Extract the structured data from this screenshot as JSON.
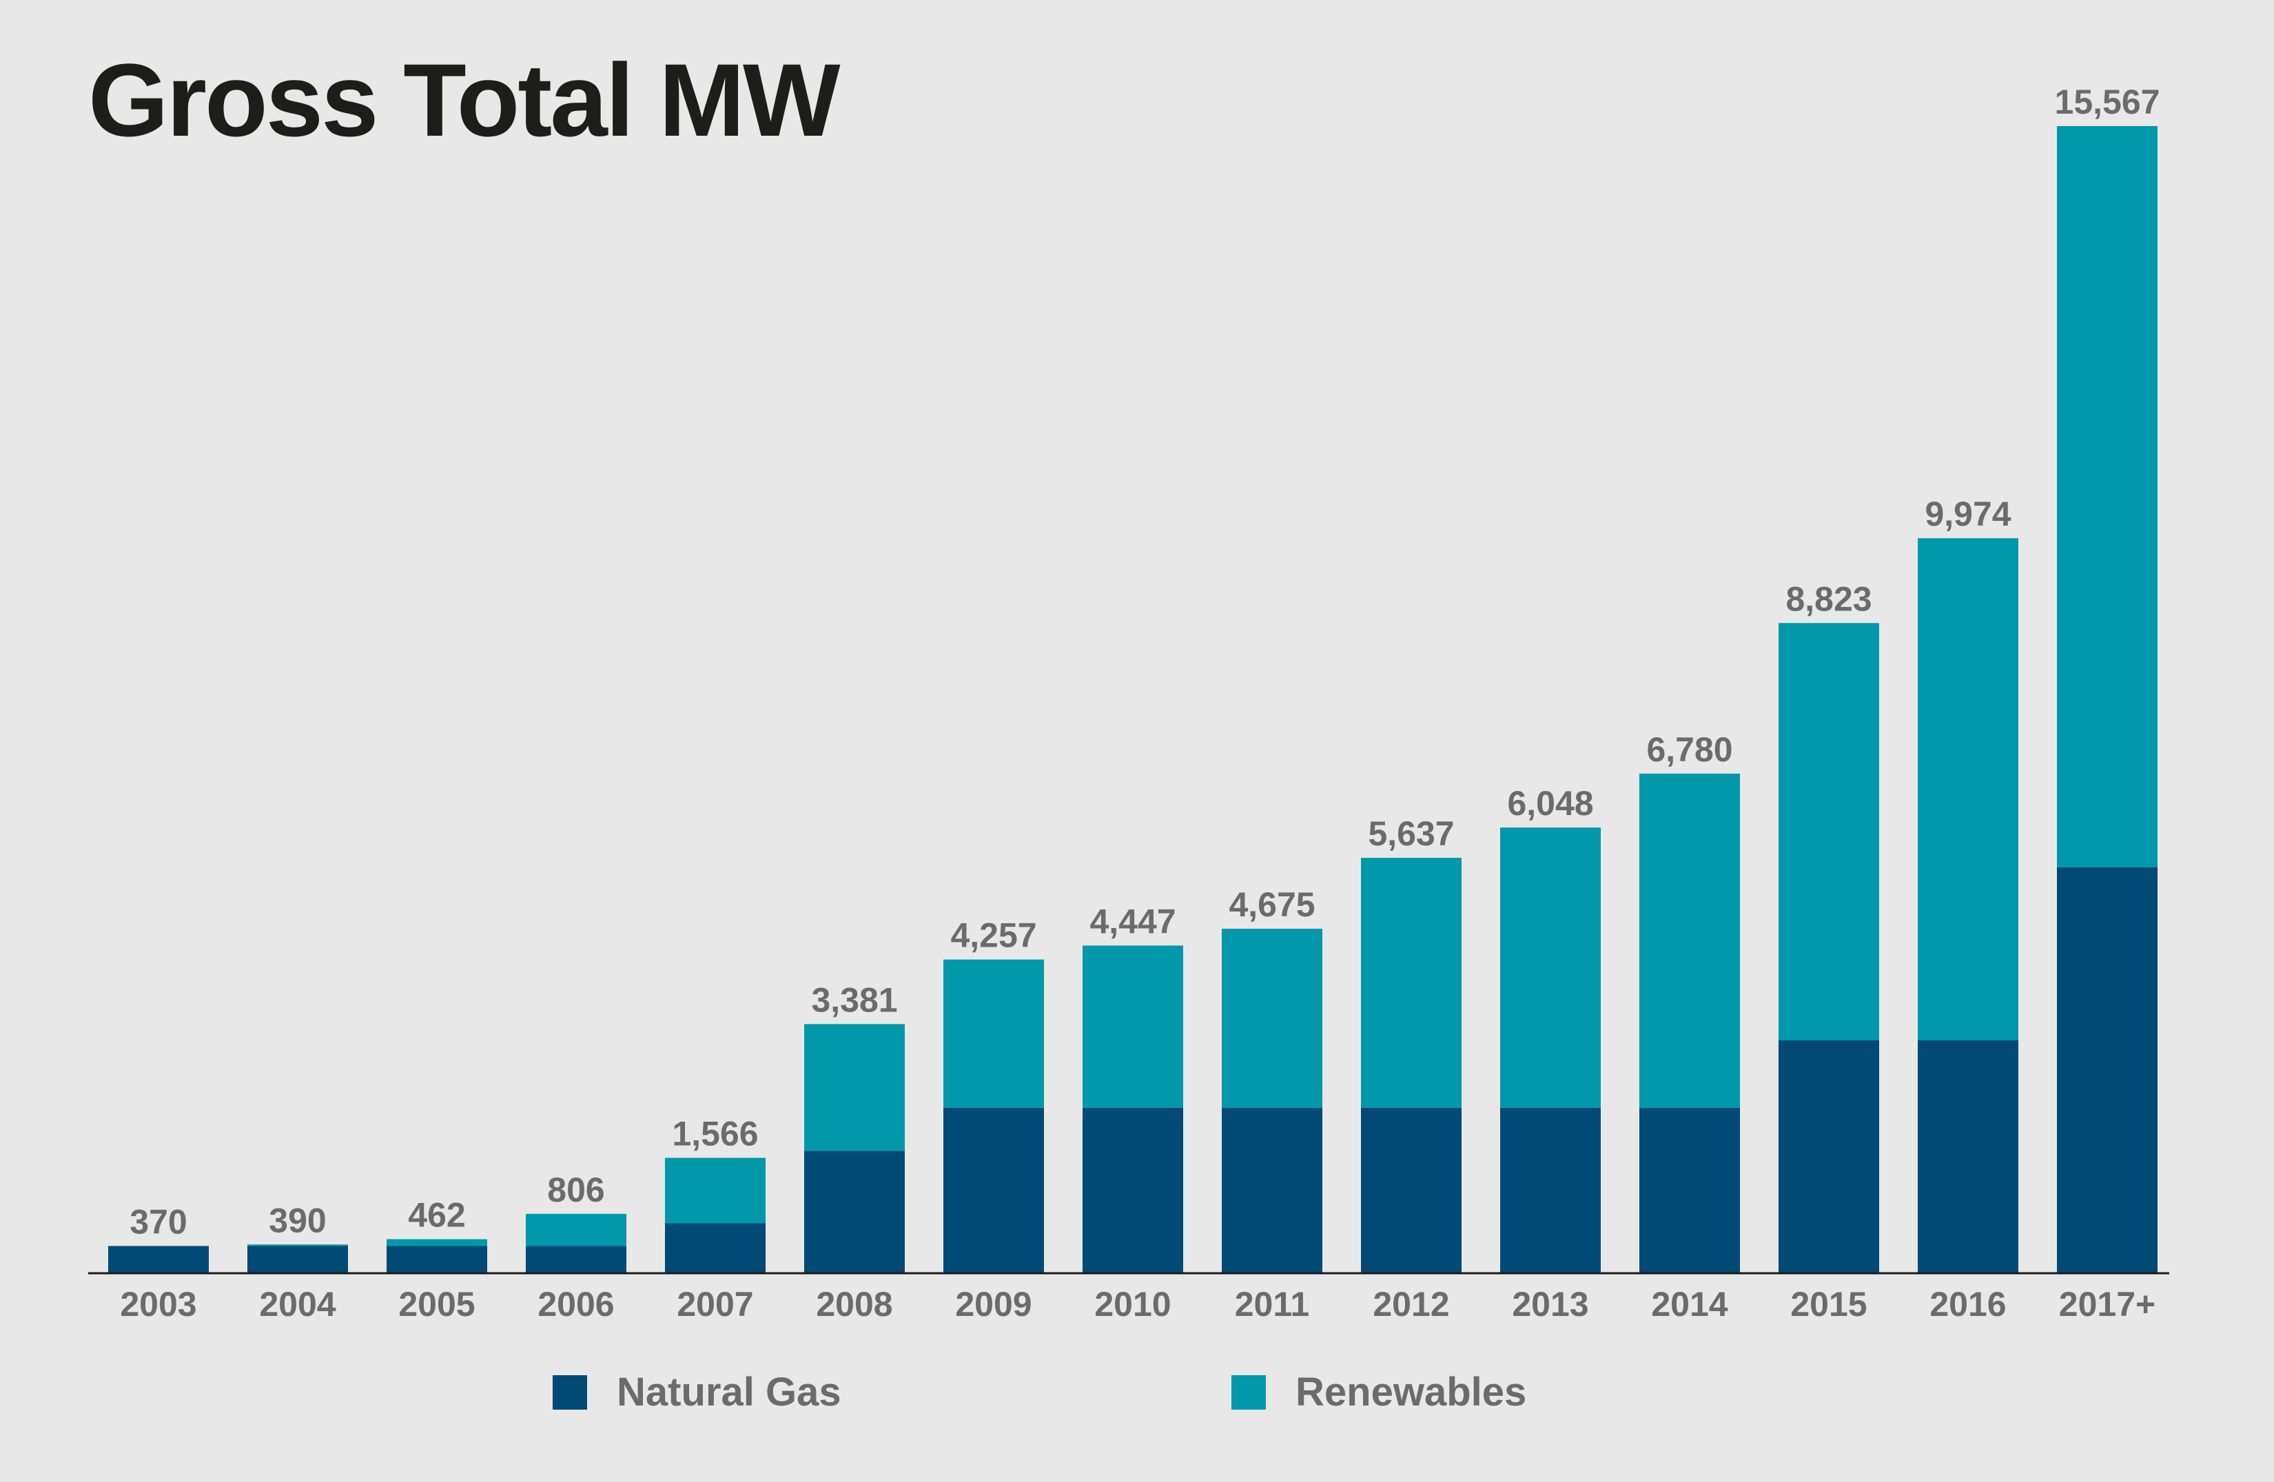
{
  "chart_data": {
    "type": "bar",
    "stacked": true,
    "title": "Gross Total MW",
    "xlabel": "",
    "ylabel": "",
    "ylim": [
      0,
      15567
    ],
    "grid": false,
    "legend_position": "bottom",
    "categories": [
      "2003",
      "2004",
      "2005",
      "2006",
      "2007",
      "2008",
      "2009",
      "2010",
      "2011",
      "2012",
      "2013",
      "2014",
      "2015",
      "2016",
      "2017+"
    ],
    "totals": [
      370,
      390,
      462,
      806,
      1566,
      3381,
      4257,
      4447,
      4675,
      5637,
      6048,
      6780,
      8823,
      9974,
      15567
    ],
    "total_labels": [
      "370",
      "390",
      "462",
      "806",
      "1,566",
      "3,381",
      "4,257",
      "4,447",
      "4,675",
      "5,637",
      "6,048",
      "6,780",
      "8,823",
      "9,974",
      "15,567"
    ],
    "series": [
      {
        "name": "Natural Gas",
        "color": "#004a75",
        "values": [
          370,
          370,
          370,
          370,
          680,
          1660,
          2245,
          2245,
          2245,
          2245,
          2245,
          2245,
          3160,
          3160,
          5510
        ]
      },
      {
        "name": "Renewables",
        "color": "#0098aa",
        "values": [
          0,
          20,
          92,
          436,
          886,
          1721,
          2012,
          2202,
          2430,
          3392,
          3803,
          4535,
          5663,
          6814,
          10057
        ]
      }
    ]
  }
}
